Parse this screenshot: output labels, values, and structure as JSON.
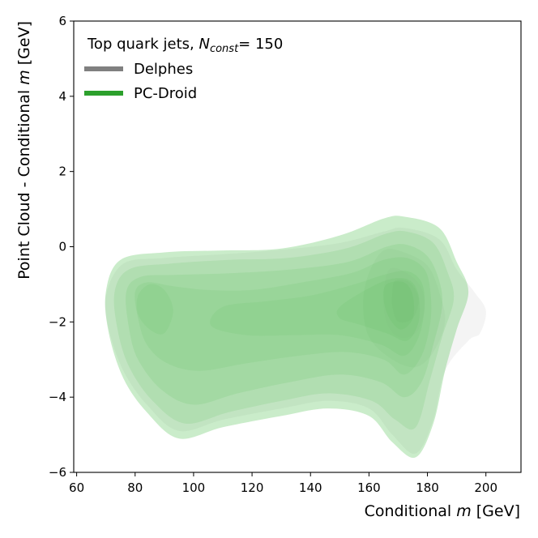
{
  "chart_data": {
    "type": "contour",
    "title": "Top quark jets",
    "title_variable": "N",
    "title_subscript": "const",
    "title_value": "= 150",
    "xlabel_prefix": "Conditional ",
    "xlabel_var": "m",
    "xlabel_suffix": " [GeV]",
    "ylabel_prefix": "Point Cloud - Conditional ",
    "ylabel_var": "m",
    "ylabel_suffix": " [GeV]",
    "xlim": [
      59,
      212
    ],
    "ylim": [
      -6,
      6
    ],
    "xticks": [
      60,
      80,
      100,
      120,
      140,
      160,
      180,
      200
    ],
    "yticks": [
      -6,
      -4,
      -2,
      0,
      2,
      4,
      6
    ],
    "xtick_labels": [
      "60",
      "80",
      "100",
      "120",
      "140",
      "160",
      "180",
      "200"
    ],
    "ytick_labels": [
      "−6",
      "−4",
      "−2",
      "0",
      "2",
      "4",
      "6"
    ],
    "legend_position": "top-left",
    "series": [
      {
        "name": "Delphes",
        "color": "#808080",
        "levels": [
          [
            [
              70,
              -1.3
            ],
            [
              76,
              -0.45
            ],
            [
              90,
              -0.3
            ],
            [
              110,
              -0.2
            ],
            [
              130,
              -0.08
            ],
            [
              150,
              0.1
            ],
            [
              165,
              0.4
            ],
            [
              172,
              0.5
            ],
            [
              184,
              0.2
            ],
            [
              190,
              -0.6
            ],
            [
              196,
              -1.2
            ],
            [
              200,
              -1.7
            ],
            [
              198,
              -2.3
            ],
            [
              194,
              -2.5
            ],
            [
              186,
              -3.3
            ],
            [
              182,
              -4.6
            ],
            [
              176,
              -5.5
            ],
            [
              168,
              -5.0
            ],
            [
              160,
              -4.3
            ],
            [
              146,
              -4.1
            ],
            [
              130,
              -4.3
            ],
            [
              110,
              -4.6
            ],
            [
              95,
              -4.9
            ],
            [
              84,
              -4.2
            ],
            [
              76,
              -3.3
            ],
            [
              71,
              -2.2
            ]
          ],
          [
            [
              165,
              -0.1
            ],
            [
              172,
              -0.15
            ],
            [
              180,
              -0.5
            ],
            [
              184,
              -1.2
            ],
            [
              186,
              -2.0
            ],
            [
              182,
              -2.8
            ],
            [
              176,
              -3.2
            ],
            [
              168,
              -3.0
            ],
            [
              160,
              -2.4
            ],
            [
              158,
              -1.5
            ],
            [
              160,
              -0.7
            ]
          ],
          [
            [
              167,
              -0.6
            ],
            [
              173,
              -0.7
            ],
            [
              178,
              -1.1
            ],
            [
              179,
              -1.7
            ],
            [
              176,
              -2.3
            ],
            [
              170,
              -2.4
            ],
            [
              166,
              -2.0
            ],
            [
              165,
              -1.3
            ]
          ],
          [
            [
              169,
              -0.9
            ],
            [
              174,
              -0.95
            ],
            [
              177,
              -1.4
            ],
            [
              175,
              -1.9
            ],
            [
              170,
              -2.0
            ],
            [
              168,
              -1.6
            ],
            [
              168,
              -1.2
            ]
          ]
        ]
      },
      {
        "name": "PC-Droid",
        "color": "#2ca02c",
        "levels": [
          [
            [
              70,
              -1.2
            ],
            [
              75,
              -0.35
            ],
            [
              90,
              -0.15
            ],
            [
              110,
              -0.1
            ],
            [
              130,
              -0.05
            ],
            [
              150,
              0.3
            ],
            [
              165,
              0.75
            ],
            [
              172,
              0.8
            ],
            [
              184,
              0.5
            ],
            [
              190,
              -0.4
            ],
            [
              194,
              -1.2
            ],
            [
              190,
              -2.2
            ],
            [
              186,
              -3.3
            ],
            [
              182,
              -4.7
            ],
            [
              176,
              -5.6
            ],
            [
              168,
              -5.2
            ],
            [
              160,
              -4.5
            ],
            [
              146,
              -4.3
            ],
            [
              130,
              -4.5
            ],
            [
              110,
              -4.8
            ],
            [
              95,
              -5.1
            ],
            [
              84,
              -4.4
            ],
            [
              76,
              -3.5
            ],
            [
              71,
              -2.3
            ]
          ],
          [
            [
              73,
              -1.2
            ],
            [
              78,
              -0.6
            ],
            [
              92,
              -0.45
            ],
            [
              112,
              -0.35
            ],
            [
              132,
              -0.3
            ],
            [
              152,
              -0.05
            ],
            [
              166,
              0.35
            ],
            [
              173,
              0.4
            ],
            [
              182,
              0.1
            ],
            [
              187,
              -0.7
            ],
            [
              189,
              -1.4
            ],
            [
              185,
              -2.4
            ],
            [
              181,
              -3.5
            ],
            [
              176,
              -4.8
            ],
            [
              169,
              -4.6
            ],
            [
              161,
              -4.1
            ],
            [
              146,
              -3.9
            ],
            [
              130,
              -4.1
            ],
            [
              112,
              -4.4
            ],
            [
              97,
              -4.7
            ],
            [
              86,
              -4.1
            ],
            [
              78,
              -3.2
            ],
            [
              74,
              -2.2
            ]
          ],
          [
            [
              77,
              -1.2
            ],
            [
              82,
              -0.8
            ],
            [
              94,
              -0.75
            ],
            [
              114,
              -0.7
            ],
            [
              134,
              -0.6
            ],
            [
              153,
              -0.4
            ],
            [
              166,
              0.0
            ],
            [
              173,
              0.05
            ],
            [
              180,
              -0.25
            ],
            [
              184,
              -0.9
            ],
            [
              185,
              -1.6
            ],
            [
              182,
              -2.6
            ],
            [
              178,
              -3.6
            ],
            [
              172,
              -4.0
            ],
            [
              164,
              -3.6
            ],
            [
              150,
              -3.4
            ],
            [
              133,
              -3.6
            ],
            [
              115,
              -3.9
            ],
            [
              100,
              -4.2
            ],
            [
              89,
              -3.8
            ],
            [
              81,
              -3.0
            ],
            [
              78,
              -2.2
            ]
          ],
          [
            [
              80,
              -1.2
            ],
            [
              84,
              -0.95
            ],
            [
              93,
              -1.05
            ],
            [
              105,
              -1.15
            ],
            [
              120,
              -1.15
            ],
            [
              137,
              -0.95
            ],
            [
              154,
              -0.7
            ],
            [
              165,
              -0.35
            ],
            [
              173,
              -0.3
            ],
            [
              179,
              -0.6
            ],
            [
              181,
              -1.2
            ],
            [
              181,
              -2.0
            ],
            [
              178,
              -2.9
            ],
            [
              172,
              -3.4
            ],
            [
              165,
              -3.0
            ],
            [
              152,
              -2.8
            ],
            [
              136,
              -2.9
            ],
            [
              118,
              -3.1
            ],
            [
              102,
              -3.3
            ],
            [
              91,
              -3.1
            ],
            [
              84,
              -2.6
            ],
            [
              81,
              -1.9
            ]
          ],
          [
            [
              81,
              -1.3
            ],
            [
              85,
              -1.0
            ],
            [
              90,
              -1.15
            ],
            [
              93,
              -1.7
            ],
            [
              90,
              -2.3
            ],
            [
              85,
              -2.2
            ],
            [
              81,
              -1.8
            ]
          ],
          [
            [
              110,
              -1.6
            ],
            [
              125,
              -1.45
            ],
            [
              140,
              -1.3
            ],
            [
              155,
              -1.0
            ],
            [
              165,
              -0.75
            ],
            [
              173,
              -0.65
            ],
            [
              178,
              -0.95
            ],
            [
              179,
              -1.6
            ],
            [
              177,
              -2.4
            ],
            [
              172,
              -2.9
            ],
            [
              164,
              -2.6
            ],
            [
              150,
              -2.35
            ],
            [
              135,
              -2.35
            ],
            [
              118,
              -2.35
            ],
            [
              106,
              -2.1
            ]
          ],
          [
            [
              150,
              -1.6
            ],
            [
              160,
              -1.1
            ],
            [
              168,
              -0.85
            ],
            [
              174,
              -0.9
            ],
            [
              177,
              -1.3
            ],
            [
              177,
              -2.0
            ],
            [
              173,
              -2.5
            ],
            [
              166,
              -2.3
            ],
            [
              156,
              -2.05
            ],
            [
              150,
              -1.9
            ]
          ],
          [
            [
              166,
              -1.0
            ],
            [
              172,
              -0.95
            ],
            [
              175,
              -1.3
            ],
            [
              175,
              -1.9
            ],
            [
              171,
              -2.2
            ],
            [
              167,
              -1.9
            ],
            [
              165,
              -1.4
            ]
          ]
        ]
      }
    ]
  }
}
